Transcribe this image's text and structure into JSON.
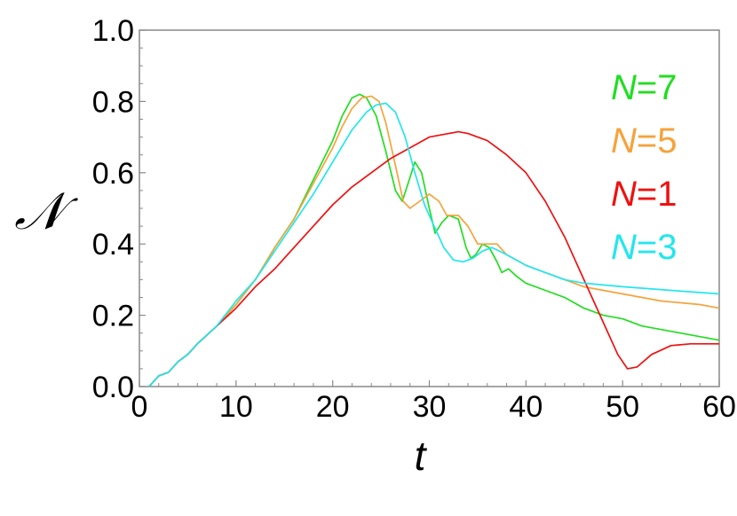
{
  "chart_data": {
    "type": "line",
    "title": "",
    "xlabel": "t",
    "ylabel": "𝒩",
    "xlim": [
      0,
      60
    ],
    "ylim": [
      0,
      1
    ],
    "xticks": [
      0,
      10,
      20,
      30,
      40,
      50,
      60
    ],
    "xtick_labels": [
      "0",
      "10",
      "20",
      "30",
      "40",
      "50",
      "60"
    ],
    "yticks": [
      0,
      0.2,
      0.4,
      0.6,
      0.8,
      1.0
    ],
    "ytick_labels": [
      "0.0",
      "0.2",
      "0.4",
      "0.6",
      "0.8",
      "1.0"
    ],
    "grid": false,
    "legend_position": "right",
    "series": [
      {
        "name": "N=7",
        "legend_prefix": "N",
        "legend_suffix": "=7",
        "color": "#22dd22",
        "points": [
          [
            1,
            0
          ],
          [
            2,
            0.03
          ],
          [
            3,
            0.04
          ],
          [
            4,
            0.07
          ],
          [
            5,
            0.09
          ],
          [
            6,
            0.12
          ],
          [
            8,
            0.17
          ],
          [
            10,
            0.23
          ],
          [
            12,
            0.3
          ],
          [
            14,
            0.39
          ],
          [
            16,
            0.47
          ],
          [
            18,
            0.58
          ],
          [
            20,
            0.69
          ],
          [
            21,
            0.76
          ],
          [
            22,
            0.81
          ],
          [
            22.8,
            0.82
          ],
          [
            23.5,
            0.81
          ],
          [
            24.5,
            0.76
          ],
          [
            25.5,
            0.66
          ],
          [
            26.5,
            0.55
          ],
          [
            27.2,
            0.52
          ],
          [
            27.8,
            0.57
          ],
          [
            28.5,
            0.63
          ],
          [
            29.2,
            0.6
          ],
          [
            30,
            0.5
          ],
          [
            30.6,
            0.43
          ],
          [
            31.3,
            0.46
          ],
          [
            32,
            0.48
          ],
          [
            33,
            0.47
          ],
          [
            33.8,
            0.39
          ],
          [
            34.3,
            0.36
          ],
          [
            34.8,
            0.37
          ],
          [
            35.5,
            0.4
          ],
          [
            36.2,
            0.39
          ],
          [
            37,
            0.35
          ],
          [
            37.5,
            0.32
          ],
          [
            38.2,
            0.33
          ],
          [
            39,
            0.31
          ],
          [
            40,
            0.29
          ],
          [
            42,
            0.27
          ],
          [
            44,
            0.25
          ],
          [
            46,
            0.22
          ],
          [
            48,
            0.2
          ],
          [
            50,
            0.19
          ],
          [
            52,
            0.17
          ],
          [
            54,
            0.16
          ],
          [
            56,
            0.15
          ],
          [
            58,
            0.14
          ],
          [
            60,
            0.13
          ]
        ]
      },
      {
        "name": "N=5",
        "legend_prefix": "N",
        "legend_suffix": "=5",
        "color": "#f5a33c",
        "points": [
          [
            1,
            0
          ],
          [
            2,
            0.03
          ],
          [
            3,
            0.04
          ],
          [
            4,
            0.07
          ],
          [
            5,
            0.09
          ],
          [
            6,
            0.12
          ],
          [
            8,
            0.17
          ],
          [
            10,
            0.23
          ],
          [
            12,
            0.3
          ],
          [
            14,
            0.39
          ],
          [
            16,
            0.47
          ],
          [
            18,
            0.57
          ],
          [
            20,
            0.67
          ],
          [
            21,
            0.73
          ],
          [
            22,
            0.78
          ],
          [
            23,
            0.81
          ],
          [
            24,
            0.815
          ],
          [
            24.8,
            0.8
          ],
          [
            25.5,
            0.74
          ],
          [
            26.5,
            0.62
          ],
          [
            27.3,
            0.52
          ],
          [
            28,
            0.5
          ],
          [
            29,
            0.52
          ],
          [
            30,
            0.54
          ],
          [
            31,
            0.52
          ],
          [
            31.8,
            0.48
          ],
          [
            33,
            0.48
          ],
          [
            34,
            0.45
          ],
          [
            35,
            0.4
          ],
          [
            36,
            0.4
          ],
          [
            37,
            0.4
          ],
          [
            38,
            0.37
          ],
          [
            40,
            0.34
          ],
          [
            42,
            0.32
          ],
          [
            44,
            0.3
          ],
          [
            46,
            0.28
          ],
          [
            48,
            0.27
          ],
          [
            50,
            0.26
          ],
          [
            52,
            0.25
          ],
          [
            54,
            0.24
          ],
          [
            56,
            0.235
          ],
          [
            58,
            0.23
          ],
          [
            60,
            0.22
          ]
        ]
      },
      {
        "name": "N=1",
        "legend_prefix": "N",
        "legend_suffix": "=1",
        "color": "#ee1111",
        "points": [
          [
            1,
            0
          ],
          [
            2,
            0.03
          ],
          [
            3,
            0.04
          ],
          [
            4,
            0.07
          ],
          [
            5,
            0.09
          ],
          [
            6,
            0.12
          ],
          [
            8,
            0.17
          ],
          [
            10,
            0.22
          ],
          [
            12,
            0.28
          ],
          [
            14,
            0.33
          ],
          [
            16,
            0.39
          ],
          [
            18,
            0.45
          ],
          [
            20,
            0.51
          ],
          [
            22,
            0.56
          ],
          [
            24,
            0.6
          ],
          [
            26,
            0.64
          ],
          [
            28,
            0.67
          ],
          [
            30,
            0.7
          ],
          [
            32,
            0.71
          ],
          [
            33,
            0.715
          ],
          [
            34,
            0.71
          ],
          [
            36,
            0.69
          ],
          [
            38,
            0.65
          ],
          [
            40,
            0.6
          ],
          [
            42,
            0.52
          ],
          [
            44,
            0.42
          ],
          [
            46,
            0.3
          ],
          [
            48,
            0.18
          ],
          [
            49.5,
            0.09
          ],
          [
            50.5,
            0.05
          ],
          [
            51.5,
            0.055
          ],
          [
            53,
            0.09
          ],
          [
            55,
            0.115
          ],
          [
            57,
            0.12
          ],
          [
            60,
            0.12
          ]
        ]
      },
      {
        "name": "N=3",
        "legend_prefix": "N",
        "legend_suffix": "=3",
        "color": "#22e6ee",
        "points": [
          [
            1,
            0
          ],
          [
            2,
            0.03
          ],
          [
            3,
            0.04
          ],
          [
            4,
            0.07
          ],
          [
            5,
            0.09
          ],
          [
            6,
            0.12
          ],
          [
            8,
            0.17
          ],
          [
            10,
            0.24
          ],
          [
            12,
            0.3
          ],
          [
            14,
            0.38
          ],
          [
            16,
            0.46
          ],
          [
            18,
            0.54
          ],
          [
            20,
            0.63
          ],
          [
            22,
            0.72
          ],
          [
            23.5,
            0.77
          ],
          [
            24.5,
            0.79
          ],
          [
            25.5,
            0.795
          ],
          [
            26.5,
            0.77
          ],
          [
            27.5,
            0.7
          ],
          [
            28.5,
            0.6
          ],
          [
            29.5,
            0.51
          ],
          [
            30.5,
            0.45
          ],
          [
            31.5,
            0.39
          ],
          [
            32.5,
            0.355
          ],
          [
            33.5,
            0.35
          ],
          [
            34.5,
            0.36
          ],
          [
            35.5,
            0.38
          ],
          [
            36.5,
            0.39
          ],
          [
            38,
            0.37
          ],
          [
            40,
            0.34
          ],
          [
            42,
            0.32
          ],
          [
            44,
            0.3
          ],
          [
            46,
            0.29
          ],
          [
            50,
            0.28
          ],
          [
            55,
            0.27
          ],
          [
            60,
            0.26
          ]
        ]
      }
    ]
  }
}
